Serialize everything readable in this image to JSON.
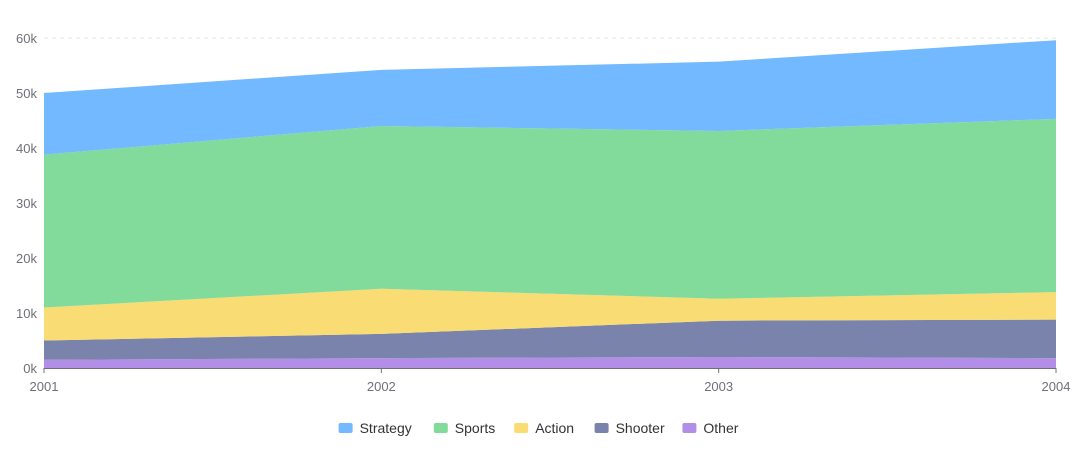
{
  "chart_data": {
    "type": "area",
    "stacked": true,
    "x": [
      "2001",
      "2002",
      "2003",
      "2004"
    ],
    "ylim": [
      0,
      60000
    ],
    "yticks": [
      {
        "value": 0,
        "label": "0k"
      },
      {
        "value": 10000,
        "label": "10k"
      },
      {
        "value": 20000,
        "label": "20k"
      },
      {
        "value": 30000,
        "label": "30k"
      },
      {
        "value": 40000,
        "label": "40k"
      },
      {
        "value": 50000,
        "label": "50k"
      },
      {
        "value": 60000,
        "label": "60k"
      }
    ],
    "grid": true,
    "legend": "bottom-center",
    "series": [
      {
        "name": "Other",
        "color": "#b38ee6",
        "values": [
          1500,
          1800,
          2000,
          1800
        ]
      },
      {
        "name": "Shooter",
        "color": "#7a83ab",
        "values": [
          3500,
          4400,
          6600,
          7000
        ]
      },
      {
        "name": "Action",
        "color": "#f9dc74",
        "values": [
          6000,
          8200,
          4000,
          5000
        ]
      },
      {
        "name": "Sports",
        "color": "#82db9a",
        "values": [
          27800,
          29600,
          30500,
          31500
        ]
      },
      {
        "name": "Strategy",
        "color": "#73b9ff",
        "values": [
          11200,
          10200,
          12600,
          14300
        ]
      }
    ],
    "legend_order": [
      "Strategy",
      "Sports",
      "Action",
      "Shooter",
      "Other"
    ]
  }
}
